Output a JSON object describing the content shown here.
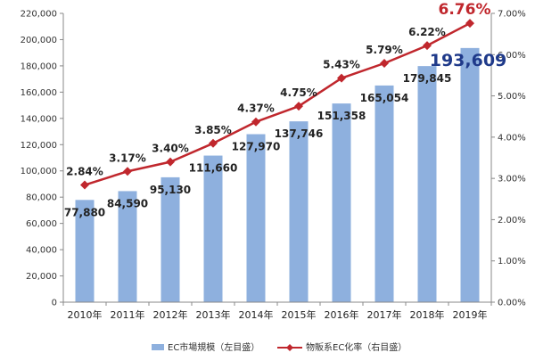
{
  "chart_data": {
    "type": "bar+line",
    "categories": [
      "2010年",
      "2011年",
      "2012年",
      "2013年",
      "2014年",
      "2015年",
      "2016年",
      "2017年",
      "2018年",
      "2019年"
    ],
    "series": [
      {
        "name": "EC市場規模（左目盛）",
        "type": "bar",
        "axis": "left",
        "values": [
          77880,
          84590,
          95130,
          111660,
          127970,
          137746,
          151358,
          165054,
          179845,
          193609
        ],
        "labels": [
          "77,880",
          "84,590",
          "95,130",
          "111,660",
          "127,970",
          "137,746",
          "151,358",
          "165,054",
          "179,845",
          "193,609"
        ],
        "color": "#8eb0de"
      },
      {
        "name": "物販系EC化率（右目盛）",
        "type": "line",
        "axis": "right",
        "values": [
          2.84,
          3.17,
          3.4,
          3.85,
          4.37,
          4.75,
          5.43,
          5.79,
          6.22,
          6.76
        ],
        "labels": [
          "2.84%",
          "3.17%",
          "3.40%",
          "3.85%",
          "4.37%",
          "4.75%",
          "5.43%",
          "5.79%",
          "6.22%",
          "6.76%"
        ],
        "color": "#c0272d"
      }
    ],
    "left_axis": {
      "ylim": [
        0,
        220000
      ],
      "ticks": [
        0,
        20000,
        40000,
        60000,
        80000,
        100000,
        120000,
        140000,
        160000,
        180000,
        200000,
        220000
      ],
      "tick_labels": [
        "0",
        "20,000",
        "40,000",
        "60,000",
        "80,000",
        "100,000",
        "120,000",
        "140,000",
        "160,000",
        "180,000",
        "200,000",
        "220,000"
      ]
    },
    "right_axis": {
      "ylim": [
        0,
        7
      ],
      "ticks": [
        0,
        1,
        2,
        3,
        4,
        5,
        6,
        7
      ],
      "tick_labels": [
        "0.00%",
        "1.00%",
        "2.00%",
        "3.00%",
        "4.00%",
        "5.00%",
        "6.00%",
        "7.00%"
      ]
    },
    "highlight_last": true,
    "grid": false,
    "legend_position": "bottom",
    "title": "",
    "xlabel": "",
    "ylabel": ""
  }
}
